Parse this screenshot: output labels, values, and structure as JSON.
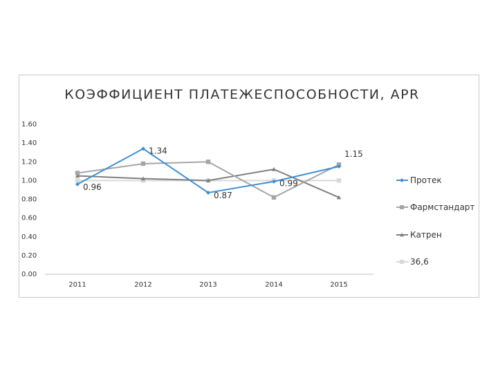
{
  "chart_data": {
    "type": "line",
    "title": "КОЭФФИЦИЕНТ ПЛАТЕЖЕСПОСОБНОСТИ, APR",
    "categories": [
      "2011",
      "2012",
      "2013",
      "2014",
      "2015"
    ],
    "ylim": [
      0,
      1.6
    ],
    "yticks": [
      "0.00",
      "0.20",
      "0.40",
      "0.60",
      "0.80",
      "1.00",
      "1.20",
      "1.40",
      "1.60"
    ],
    "grid": false,
    "legend_position": "right",
    "series": [
      {
        "name": "Протек",
        "values": [
          0.96,
          1.34,
          0.87,
          0.99,
          1.15
        ],
        "color": "#3b8fd6",
        "marker": "diamond",
        "labels": [
          "0.96",
          "1.34",
          "0.87",
          "0.99",
          "1.15"
        ]
      },
      {
        "name": "Фармстандарт",
        "values": [
          1.08,
          1.18,
          1.2,
          0.82,
          1.17
        ],
        "color": "#a5a5a5",
        "marker": "square"
      },
      {
        "name": "Катрен",
        "values": [
          1.05,
          1.02,
          1.0,
          1.12,
          0.82
        ],
        "color": "#7f7f7f",
        "marker": "triangle"
      },
      {
        "name": "36,6",
        "values": [
          1.0,
          1.0,
          1.0,
          1.0,
          1.0
        ],
        "color": "#d9d9d9",
        "marker": "square"
      }
    ]
  }
}
